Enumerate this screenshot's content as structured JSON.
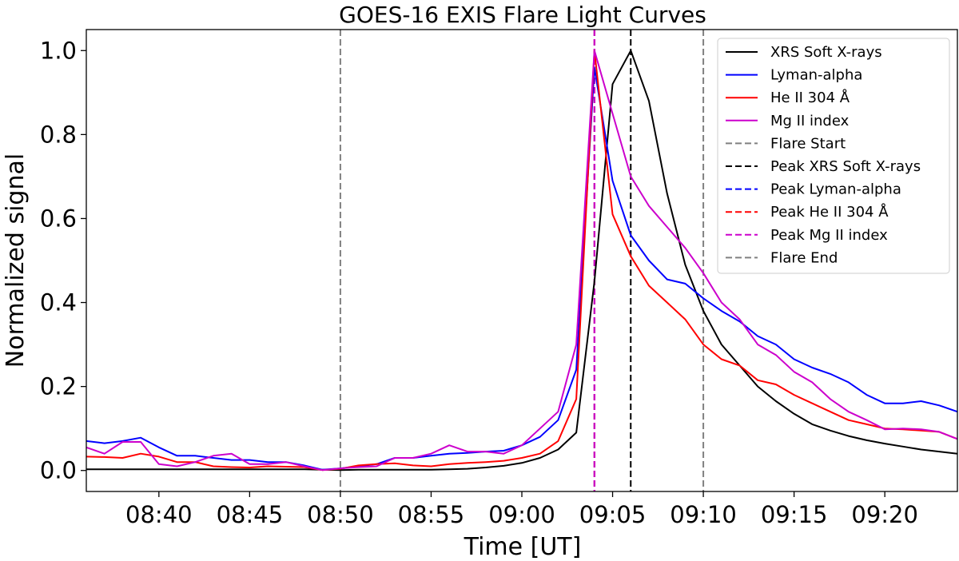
{
  "chart_data": {
    "type": "line",
    "title": "GOES-16 EXIS Flare Light Curves",
    "xlabel": "Time [UT]",
    "ylabel": "Normalized signal",
    "xlim": [
      "08:36",
      "09:24"
    ],
    "ylim": [
      -0.05,
      1.05
    ],
    "xticks": [
      "08:40",
      "08:45",
      "08:50",
      "08:55",
      "09:00",
      "09:05",
      "09:10",
      "09:15",
      "09:20"
    ],
    "yticks": [
      "0.0",
      "0.2",
      "0.4",
      "0.6",
      "0.8",
      "1.0"
    ],
    "grid": false,
    "legend_position": "top-right",
    "x": [
      "08:36",
      "08:37",
      "08:38",
      "08:39",
      "08:40",
      "08:41",
      "08:42",
      "08:43",
      "08:44",
      "08:45",
      "08:46",
      "08:47",
      "08:48",
      "08:49",
      "08:50",
      "08:51",
      "08:52",
      "08:53",
      "08:54",
      "08:55",
      "08:56",
      "08:57",
      "08:58",
      "08:59",
      "09:00",
      "09:01",
      "09:02",
      "09:03",
      "09:04",
      "09:05",
      "09:06",
      "09:07",
      "09:08",
      "09:09",
      "09:10",
      "09:11",
      "09:12",
      "09:13",
      "09:14",
      "09:15",
      "09:16",
      "09:17",
      "09:18",
      "09:19",
      "09:20",
      "09:21",
      "09:22",
      "09:23",
      "09:24"
    ],
    "series": [
      {
        "name": "XRS Soft X-rays",
        "color": "#000000",
        "values": [
          0.003,
          0.003,
          0.003,
          0.003,
          0.003,
          0.003,
          0.003,
          0.003,
          0.003,
          0.003,
          0.003,
          0.003,
          0.003,
          0.002,
          0.001,
          0.002,
          0.002,
          0.002,
          0.002,
          0.002,
          0.003,
          0.004,
          0.007,
          0.011,
          0.018,
          0.03,
          0.05,
          0.09,
          0.45,
          0.92,
          1.0,
          0.88,
          0.66,
          0.49,
          0.38,
          0.3,
          0.25,
          0.2,
          0.165,
          0.135,
          0.11,
          0.095,
          0.082,
          0.072,
          0.064,
          0.057,
          0.05,
          0.045,
          0.04
        ]
      },
      {
        "name": "Lyman-alpha",
        "color": "#0000ff",
        "values": [
          0.07,
          0.065,
          0.07,
          0.078,
          0.055,
          0.035,
          0.035,
          0.03,
          0.025,
          0.025,
          0.02,
          0.02,
          0.012,
          0.002,
          0.005,
          0.01,
          0.015,
          0.03,
          0.03,
          0.035,
          0.04,
          0.042,
          0.045,
          0.047,
          0.06,
          0.08,
          0.12,
          0.24,
          0.96,
          0.69,
          0.56,
          0.5,
          0.455,
          0.445,
          0.41,
          0.38,
          0.355,
          0.32,
          0.3,
          0.265,
          0.245,
          0.23,
          0.21,
          0.18,
          0.16,
          0.16,
          0.165,
          0.155,
          0.14
        ]
      },
      {
        "name": "He II 304 Å",
        "color": "#ff0000",
        "values": [
          0.033,
          0.032,
          0.03,
          0.04,
          0.033,
          0.02,
          0.02,
          0.01,
          0.008,
          0.007,
          0.01,
          0.009,
          0.008,
          0.001,
          0.004,
          0.012,
          0.015,
          0.017,
          0.012,
          0.01,
          0.015,
          0.018,
          0.02,
          0.023,
          0.03,
          0.04,
          0.07,
          0.17,
          1.0,
          0.61,
          0.51,
          0.44,
          0.4,
          0.36,
          0.3,
          0.265,
          0.25,
          0.215,
          0.205,
          0.18,
          0.16,
          0.14,
          0.12,
          0.11,
          0.1,
          0.098,
          0.095,
          0.092,
          0.075
        ]
      },
      {
        "name": "Mg II index",
        "color": "#cc00cc",
        "values": [
          0.055,
          0.04,
          0.068,
          0.068,
          0.015,
          0.01,
          0.02,
          0.035,
          0.04,
          0.015,
          0.015,
          0.02,
          0.01,
          0.001,
          0.005,
          0.008,
          0.01,
          0.03,
          0.03,
          0.04,
          0.06,
          0.045,
          0.045,
          0.04,
          0.06,
          0.1,
          0.14,
          0.3,
          1.0,
          0.85,
          0.7,
          0.63,
          0.58,
          0.53,
          0.47,
          0.4,
          0.36,
          0.3,
          0.275,
          0.235,
          0.21,
          0.17,
          0.14,
          0.12,
          0.098,
          0.1,
          0.098,
          0.092,
          0.075
        ]
      }
    ],
    "vlines": [
      {
        "name": "Flare Start",
        "x": "08:50",
        "color": "#808080"
      },
      {
        "name": "Peak XRS Soft X-rays",
        "x": "09:06",
        "color": "#000000"
      },
      {
        "name": "Peak Lyman-alpha",
        "x": "09:04",
        "color": "#0000ff"
      },
      {
        "name": "Peak He II 304 Å",
        "x": "09:04",
        "color": "#ff0000"
      },
      {
        "name": "Peak Mg II index",
        "x": "09:04",
        "color": "#cc00cc"
      },
      {
        "name": "Flare End",
        "x": "09:10",
        "color": "#808080"
      }
    ]
  }
}
